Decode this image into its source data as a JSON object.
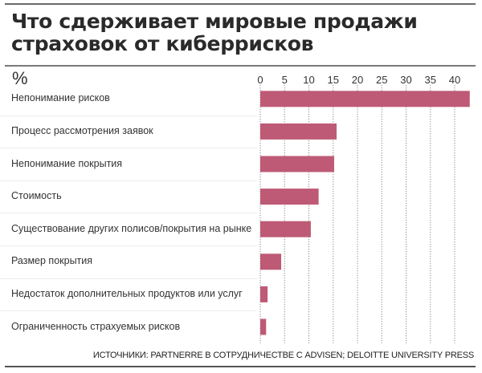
{
  "chart_data": {
    "type": "bar",
    "orientation": "horizontal",
    "title": "Что сдерживает мировые продажи страховок от киберрисков",
    "title_lines": [
      "Что сдерживает мировые продажи",
      "страховок от киберрисков"
    ],
    "unit_label": "%",
    "xlabel": "",
    "ylabel": "",
    "categories": [
      "Непонимание рисков",
      "Процесс рассмотрения заявок",
      "Непонимание покрытия",
      "Стоимость",
      "Существование других полисов/покрытия на рынке",
      "Размер покрытия",
      "Недостаток дополнительных продуктов или услуг",
      "Ограниченность страхуемых рисков"
    ],
    "values": [
      43.1,
      15.7,
      15.2,
      12.0,
      10.4,
      4.3,
      1.5,
      1.2
    ],
    "xlim": [
      0,
      43.5
    ],
    "ticks": [
      0,
      5,
      10,
      15,
      20,
      25,
      30,
      35,
      40
    ],
    "tick_labels": [
      "0",
      "5",
      "10",
      "15",
      "20",
      "25",
      "30",
      "35",
      "40"
    ],
    "grid": true,
    "grid_style": "dotted-vertical",
    "legend": "none",
    "bar_color": "#be5a75",
    "source": "ИСТОЧНИКИ: PARTNERRE В СОТРУДНИЧЕСТВЕ С ADVISEN; DELOITTE UNIVERSITY PRESS"
  }
}
